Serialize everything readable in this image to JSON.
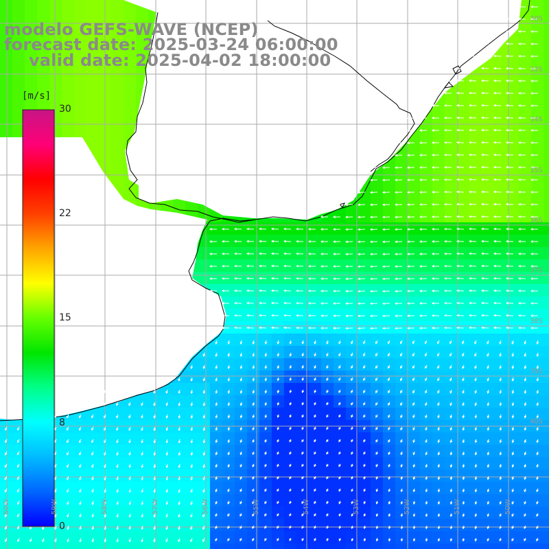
{
  "title": {
    "model": "modelo GEFS-WAVE (NCEP)",
    "forecast": "forecast date: 2025-03-24 06:00:00",
    "valid": "valid date: 2025-04-02 18:00:00"
  },
  "colorbar": {
    "unit": "[m/s]",
    "ticks": [
      "30",
      "22",
      "15",
      "8",
      "0"
    ],
    "min": 0,
    "max": 30,
    "colors": [
      "#0000ff",
      "#0066ff",
      "#00bbff",
      "#00ffff",
      "#00ff88",
      "#00e600",
      "#66ff00",
      "#ffff00",
      "#ffa500",
      "#ff4000",
      "#ff0000",
      "#ff0077",
      "#c71585"
    ]
  },
  "map": {
    "variable": "wind speed",
    "unit": "m/s",
    "land_color": "#ffffff",
    "grid_color": "#aaaaaa",
    "coastline_color": "#000000",
    "vector_color": "#ffffff",
    "lat_labels": [
      "30S",
      "33S",
      "34S",
      "35S",
      "36S",
      "37S",
      "38S",
      "39S",
      "40S"
    ],
    "lon_labels": [
      "60W",
      "59W",
      "58W",
      "57W",
      "56W",
      "55W",
      "54W",
      "53W",
      "52W",
      "51W",
      "50W"
    ]
  }
}
